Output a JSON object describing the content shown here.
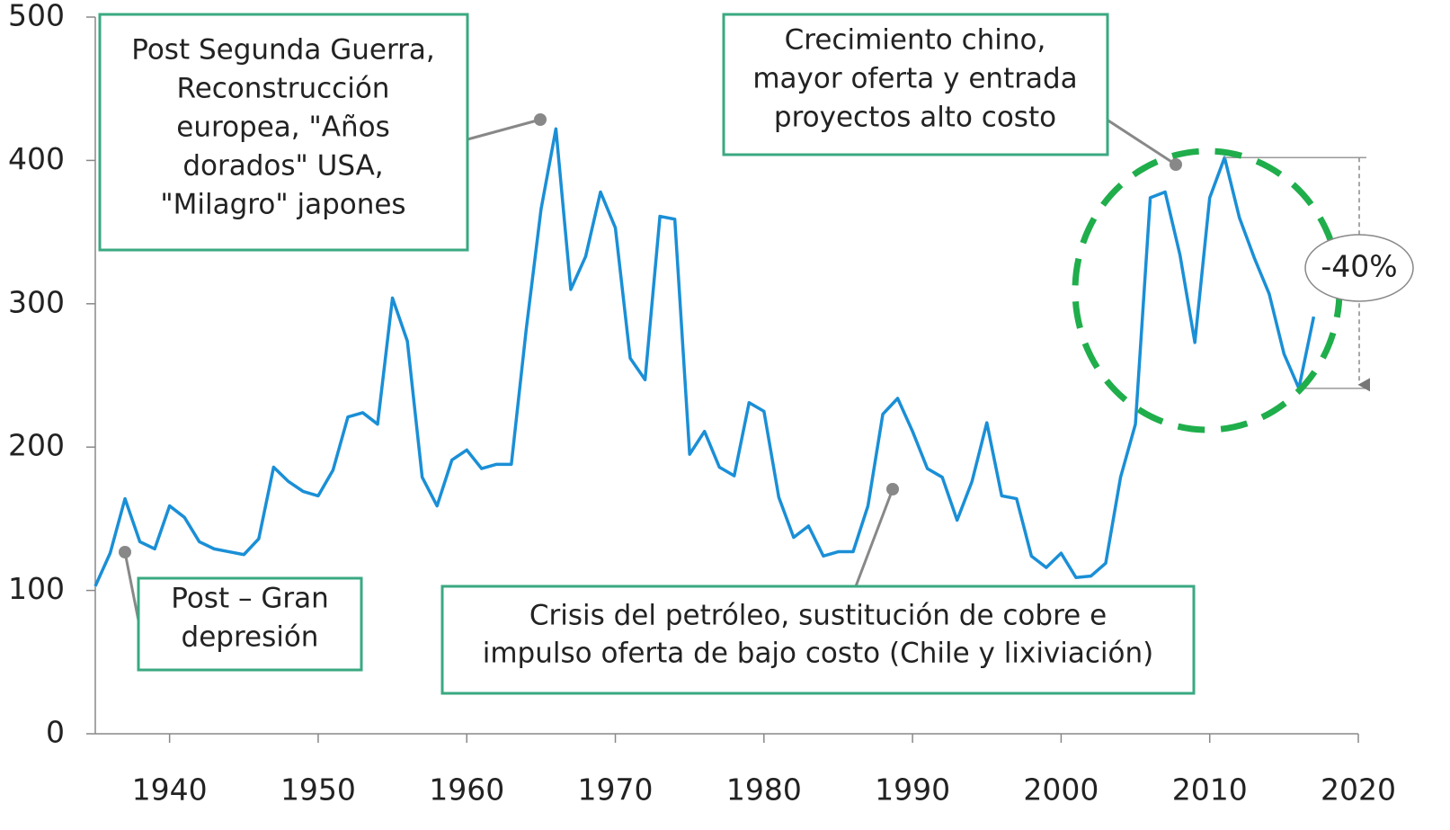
{
  "chart_data": {
    "type": "line",
    "x": [
      1935,
      1936,
      1937,
      1938,
      1939,
      1940,
      1941,
      1942,
      1943,
      1944,
      1945,
      1946,
      1947,
      1948,
      1949,
      1950,
      1951,
      1952,
      1953,
      1954,
      1955,
      1956,
      1957,
      1958,
      1959,
      1960,
      1961,
      1962,
      1963,
      1964,
      1965,
      1966,
      1967,
      1968,
      1969,
      1970,
      1971,
      1972,
      1973,
      1974,
      1975,
      1976,
      1977,
      1978,
      1979,
      1980,
      1981,
      1982,
      1983,
      1984,
      1985,
      1986,
      1987,
      1988,
      1989,
      1990,
      1991,
      1992,
      1993,
      1994,
      1995,
      1996,
      1997,
      1998,
      1999,
      2000,
      2001,
      2002,
      2003,
      2004,
      2005,
      2006,
      2007,
      2008,
      2009,
      2010,
      2011,
      2012,
      2013,
      2014,
      2015,
      2016,
      2017
    ],
    "series": [
      {
        "color": "#1a8fd6",
        "values": [
          103,
          126,
          164,
          134,
          129,
          159,
          151,
          134,
          129,
          127,
          125,
          136,
          186,
          176,
          169,
          166,
          184,
          221,
          224,
          216,
          304,
          274,
          179,
          159,
          191,
          198,
          185,
          188,
          188,
          282,
          366,
          422,
          310,
          333,
          378,
          353,
          262,
          247,
          361,
          359,
          195,
          211,
          186,
          180,
          231,
          225,
          165,
          137,
          145,
          124,
          127,
          127,
          159,
          223,
          234,
          211,
          185,
          179,
          149,
          176,
          217,
          166,
          164,
          124,
          116,
          126,
          109,
          110,
          119,
          179,
          216,
          374,
          378,
          334,
          273,
          374,
          402,
          360,
          332,
          307,
          265,
          241,
          291
        ]
      }
    ],
    "xlim": [
      1935,
      2020
    ],
    "xticks": [
      1940,
      1950,
      1960,
      1970,
      1980,
      1990,
      2000,
      2010,
      2020
    ],
    "ylim": [
      0,
      500
    ],
    "yticks": [
      0,
      100,
      200,
      300,
      400,
      500
    ],
    "annotations": [
      {
        "lines": [
          "Post Segunda Guerra,",
          "Reconstrucción",
          "europea, \"Años",
          "dorados\" USA,",
          "\"Milagro\" japones"
        ]
      },
      {
        "lines": [
          "Crecimiento chino,",
          "mayor oferta y entrada",
          "proyectos alto costo"
        ]
      },
      {
        "lines": [
          "Post – Gran",
          "depresión"
        ]
      },
      {
        "lines": [
          "Crisis del petróleo, sustitución de cobre e",
          "impulso oferta de bajo costo (Chile y lixiviación)"
        ]
      }
    ],
    "change_label": "-40%"
  }
}
